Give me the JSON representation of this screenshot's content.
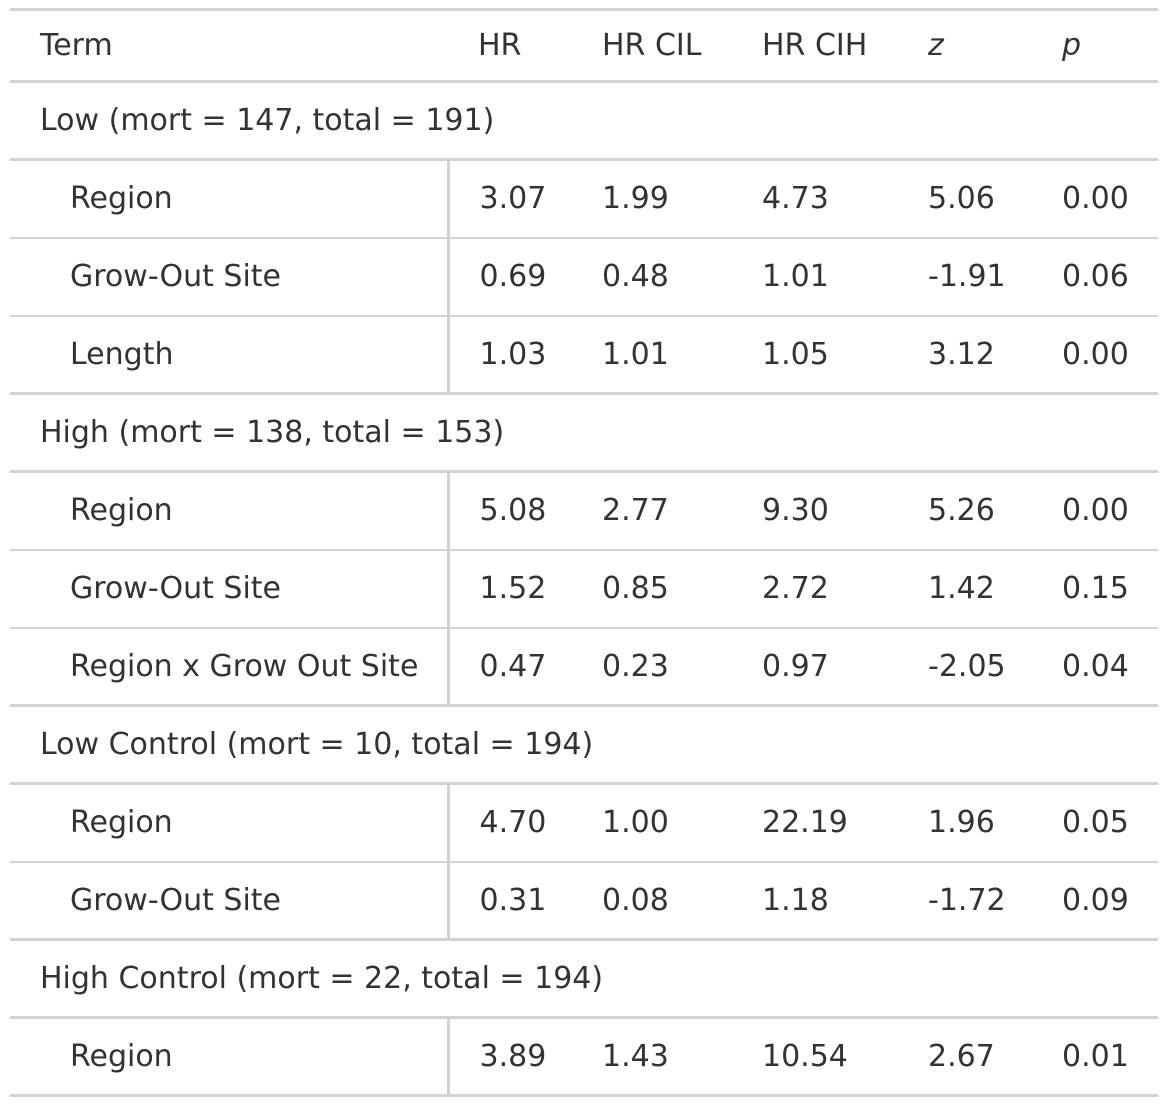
{
  "table": {
    "headers": {
      "term": "Term",
      "hr": "HR",
      "hr_cil": "HR CIL",
      "hr_cih": "HR CIH",
      "z": "z",
      "p": "p"
    },
    "groups": [
      {
        "label": "Low (mort = 147, total = 191)",
        "rows": [
          {
            "term": "Region",
            "hr": "3.07",
            "hr_cil": "1.99",
            "hr_cih": "4.73",
            "z": "5.06",
            "p": "0.00"
          },
          {
            "term": "Grow-Out Site",
            "hr": "0.69",
            "hr_cil": "0.48",
            "hr_cih": "1.01",
            "z": "-1.91",
            "p": "0.06"
          },
          {
            "term": "Length",
            "hr": "1.03",
            "hr_cil": "1.01",
            "hr_cih": "1.05",
            "z": "3.12",
            "p": "0.00"
          }
        ]
      },
      {
        "label": "High (mort = 138, total = 153)",
        "rows": [
          {
            "term": "Region",
            "hr": "5.08",
            "hr_cil": "2.77",
            "hr_cih": "9.30",
            "z": "5.26",
            "p": "0.00"
          },
          {
            "term": "Grow-Out Site",
            "hr": "1.52",
            "hr_cil": "0.85",
            "hr_cih": "2.72",
            "z": "1.42",
            "p": "0.15"
          },
          {
            "term": "Region x Grow Out Site",
            "hr": "0.47",
            "hr_cil": "0.23",
            "hr_cih": "0.97",
            "z": "-2.05",
            "p": "0.04"
          }
        ]
      },
      {
        "label": "Low Control (mort = 10, total = 194)",
        "rows": [
          {
            "term": "Region",
            "hr": "4.70",
            "hr_cil": "1.00",
            "hr_cih": "22.19",
            "z": "1.96",
            "p": "0.05"
          },
          {
            "term": "Grow-Out Site",
            "hr": "0.31",
            "hr_cil": "0.08",
            "hr_cih": "1.18",
            "z": "-1.72",
            "p": "0.09"
          }
        ]
      },
      {
        "label": "High Control (mort = 22, total = 194)",
        "rows": [
          {
            "term": "Region",
            "hr": "3.89",
            "hr_cil": "1.43",
            "hr_cih": "10.54",
            "z": "2.67",
            "p": "0.01"
          }
        ]
      }
    ]
  }
}
